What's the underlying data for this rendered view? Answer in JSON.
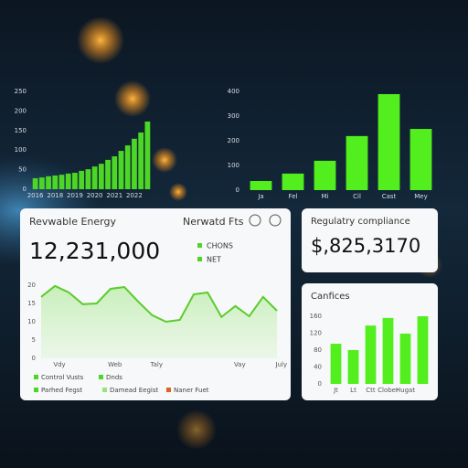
{
  "chart_data": [
    {
      "type": "bar",
      "color": "#4cd626",
      "categories": [
        "2016",
        null,
        null,
        "2018",
        null,
        null,
        "2019",
        null,
        null,
        "2020",
        null,
        null,
        "2021",
        null,
        null,
        "2022",
        null,
        null
      ],
      "values": [
        28,
        30,
        33,
        35,
        37,
        40,
        42,
        47,
        51,
        58,
        65,
        75,
        84,
        98,
        112,
        129,
        145,
        173
      ],
      "ylim": [
        0,
        250
      ],
      "yticks": [
        0,
        50,
        100,
        150,
        200,
        250
      ]
    },
    {
      "type": "bar",
      "color": "#52ee1e",
      "categories": [
        "Ja",
        "Fel",
        "Mi",
        "Cil",
        "Cast",
        "Mey"
      ],
      "values": [
        37,
        67,
        119,
        219,
        389,
        248
      ],
      "ylim": [
        0,
        400
      ],
      "yticks": [
        0,
        100,
        200,
        300,
        400
      ]
    },
    {
      "type": "line",
      "color": "#5ccc2c",
      "categories": [
        "Vdy",
        null,
        null,
        null,
        "Web",
        null,
        null,
        "Taly",
        null,
        null,
        null,
        null,
        null,
        "Vay",
        null,
        null,
        "July",
        null
      ],
      "values": [
        16.8,
        19.8,
        18,
        14.8,
        15,
        19,
        19.5,
        15.5,
        11.8,
        10,
        10.5,
        17.5,
        18,
        11.3,
        14.3,
        11.5,
        16.8,
        13
      ],
      "ylim": [
        0,
        20
      ],
      "yticks": [
        0,
        5,
        10,
        15,
        20
      ]
    },
    {
      "type": "bar",
      "color": "#52ee1e",
      "categories": [
        "Jt",
        "Lt",
        "Ctt",
        "Clober",
        "Hugat",
        null
      ],
      "values": [
        95,
        80,
        138,
        156,
        119,
        160
      ],
      "ylim": [
        0,
        160
      ],
      "yticks": [
        0,
        40,
        80,
        120,
        160
      ]
    }
  ],
  "cards": {
    "energy": {
      "title": "Revwable Energy",
      "subtitle": "Nerwatd Fts",
      "value": "12,231,000",
      "legend": [
        "CHONS",
        "NET"
      ],
      "footer": [
        "Control Vusts",
        "Dnds",
        "Parhed Fegst",
        "Damead Eegist",
        "Naner Fuet"
      ]
    },
    "compliance": {
      "title": "Regulatry compliance",
      "value": "$,825,3170"
    },
    "canfices": {
      "title": "Canfices"
    }
  }
}
